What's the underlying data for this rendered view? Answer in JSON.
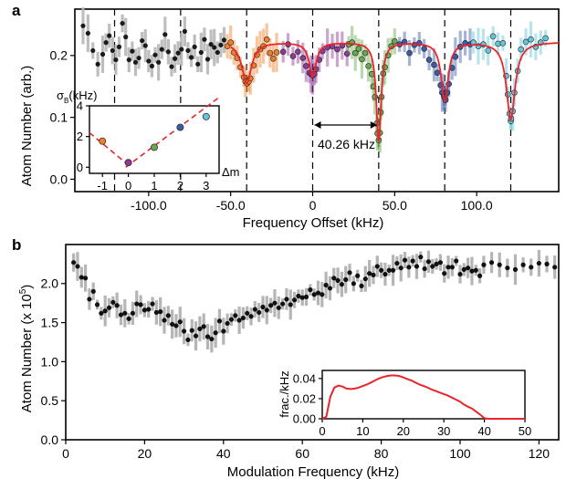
{
  "chart_data": [
    {
      "panel": "a",
      "type": "scatter",
      "xlabel": "Frequency Offset (kHz)",
      "ylabel": "Atom Number (arb.)",
      "xlim": [
        -145,
        150
      ],
      "ylim": [
        -0.02,
        0.275
      ],
      "xticks": [
        -100,
        -50,
        0,
        50,
        100
      ],
      "xtick_labels": [
        "-100.0",
        "-50.0",
        "0",
        "50.0",
        "100.0"
      ],
      "yticks": [
        0,
        0.1,
        0.2
      ],
      "ytick_labels": [
        "0.0",
        "0.1",
        "0.2"
      ],
      "grid": false,
      "annotation": "40.26 kHz",
      "dashed_lines_x": [
        -120.78,
        -80.52,
        -40.26,
        0,
        40.26,
        80.52,
        120.78
      ],
      "fit": {
        "name": "fit",
        "color": "#e8262b",
        "baseline": 0.222,
        "dips": [
          {
            "center": -40.26,
            "depth": 0.067,
            "width": 3.6
          },
          {
            "center": 0,
            "depth": 0.055,
            "width": 2.6
          },
          {
            "center": 40.26,
            "depth": 0.16,
            "width": 1.8
          },
          {
            "center": 80.52,
            "depth": 0.095,
            "width": 2.6
          },
          {
            "center": 120.78,
            "depth": 0.125,
            "width": 3.2
          }
        ],
        "x_start": -50
      },
      "series": [
        {
          "color": "#1a1a1a",
          "x": [
            -140,
            -137,
            -134,
            -131,
            -128,
            -126,
            -124,
            -122,
            -120,
            -118,
            -116,
            -114,
            -112,
            -110,
            -108,
            -106,
            -104,
            -102,
            -100,
            -98,
            -96,
            -94,
            -92,
            -90,
            -88,
            -86,
            -84,
            -82,
            -80,
            -78,
            -76,
            -74,
            -72,
            -70,
            -68,
            -66,
            -64,
            -62,
            -60,
            -58,
            -56,
            -54
          ],
          "y": [
            0.248,
            0.236,
            0.208,
            0.186,
            0.202,
            0.221,
            0.232,
            0.208,
            0.193,
            0.214,
            0.252,
            0.23,
            0.193,
            0.207,
            0.189,
            0.196,
            0.224,
            0.216,
            0.191,
            0.183,
            0.201,
            0.189,
            0.21,
            0.234,
            0.206,
            0.182,
            0.195,
            0.204,
            0.21,
            0.239,
            0.208,
            0.197,
            0.214,
            0.186,
            0.205,
            0.226,
            0.194,
            0.218,
            0.213,
            0.205,
            0.217,
            0.225
          ]
        },
        {
          "color": "#f07f2a",
          "x": [
            -52,
            -50,
            -48,
            -46,
            -44,
            -42,
            -41,
            -40,
            -39,
            -38,
            -36,
            -34,
            -32,
            -30,
            -28,
            -26,
            -24,
            -22
          ],
          "y": [
            0.215,
            0.221,
            0.205,
            0.196,
            0.181,
            0.165,
            0.158,
            0.155,
            0.158,
            0.163,
            0.184,
            0.201,
            0.21,
            0.215,
            0.226,
            0.204,
            0.195,
            0.205
          ]
        },
        {
          "color": "#8d3a95",
          "x": [
            -18,
            -15,
            -12,
            -9,
            -6,
            -4,
            -2,
            -1,
            0,
            1,
            2,
            4,
            6,
            9,
            12,
            15,
            18,
            21
          ],
          "y": [
            0.206,
            0.218,
            0.199,
            0.206,
            0.196,
            0.183,
            0.172,
            0.17,
            0.168,
            0.17,
            0.178,
            0.193,
            0.207,
            0.213,
            0.215,
            0.21,
            0.216,
            0.203
          ]
        },
        {
          "color": "#6aa84f",
          "x": [
            22,
            24,
            26,
            28,
            30,
            32,
            34,
            36,
            37,
            38,
            39,
            39.5,
            40.26,
            41,
            41.5,
            42,
            43,
            44,
            46,
            48,
            50
          ],
          "y": [
            0.218,
            0.221,
            0.204,
            0.211,
            0.194,
            0.204,
            0.183,
            0.17,
            0.15,
            0.133,
            0.09,
            0.074,
            0.063,
            0.075,
            0.108,
            0.133,
            0.171,
            0.181,
            0.2,
            0.215,
            0.223
          ]
        },
        {
          "color": "#3c5aa6",
          "x": [
            53,
            56,
            59,
            62,
            65,
            68,
            71,
            74,
            76,
            78,
            79,
            80,
            80.5,
            81,
            82,
            83,
            85,
            87,
            90,
            93,
            96
          ],
          "y": [
            0.218,
            0.222,
            0.204,
            0.217,
            0.22,
            0.211,
            0.193,
            0.185,
            0.172,
            0.152,
            0.14,
            0.135,
            0.132,
            0.128,
            0.14,
            0.154,
            0.18,
            0.198,
            0.214,
            0.22,
            0.218
          ]
        },
        {
          "color": "#66c5d9",
          "x": [
            98,
            101,
            104,
            107,
            110,
            113,
            116,
            118,
            119,
            120,
            120.78,
            121,
            122,
            123,
            125,
            127,
            130,
            133,
            136,
            139,
            142
          ],
          "y": [
            0.221,
            0.215,
            0.218,
            0.208,
            0.231,
            0.219,
            0.22,
            0.167,
            0.137,
            0.106,
            0.094,
            0.098,
            0.11,
            0.14,
            0.175,
            0.21,
            0.222,
            0.226,
            0.214,
            0.221,
            0.228
          ]
        }
      ]
    },
    {
      "panel": "inset-a",
      "type": "scatter",
      "ylabel": "σB(kHz)",
      "xlabel": "Δm",
      "xlim": [
        -1.5,
        3.5
      ],
      "ylim": [
        -0.4,
        4
      ],
      "xticks": [
        -1,
        0,
        1,
        2,
        3
      ],
      "xtick_labels": [
        "-1",
        "0",
        "1",
        "2",
        "3"
      ],
      "yticks": [
        0,
        2,
        4
      ],
      "ytick_labels": [
        "0",
        "2",
        "4"
      ],
      "points": [
        {
          "x": -1,
          "y": 1.7,
          "color": "#f07f2a"
        },
        {
          "x": 0,
          "y": 0.3,
          "color": "#8d3a95"
        },
        {
          "x": 1,
          "y": 1.3,
          "color": "#6aa84f"
        },
        {
          "x": 2,
          "y": 2.6,
          "color": "#3c5aa6"
        },
        {
          "x": 3,
          "y": 3.3,
          "color": "#66c5d9"
        }
      ],
      "fit_lines": [
        {
          "x": [
            -1.5,
            0.1
          ],
          "y": [
            2.25,
            0.0
          ]
        },
        {
          "x": [
            -0.1,
            3.5
          ],
          "y": [
            0.0,
            4.55
          ]
        }
      ]
    },
    {
      "panel": "b",
      "type": "scatter",
      "xlabel": "Modulation Frequency (kHz)",
      "ylabel": "Atom Number (x 10^5)",
      "xlim": [
        0,
        125
      ],
      "ylim": [
        0,
        2.5
      ],
      "xticks": [
        0,
        20,
        40,
        60,
        80,
        100,
        120
      ],
      "xtick_labels": [
        "0",
        "20",
        "40",
        "60",
        "80",
        "100",
        "120"
      ],
      "yticks": [
        0,
        0.5,
        1.0,
        1.5,
        2.0
      ],
      "ytick_labels": [
        "0.0",
        "0.5",
        "1.0",
        "1.5",
        "2.0"
      ],
      "grid": false,
      "x": [
        2,
        3,
        4,
        5,
        6,
        7,
        8,
        9,
        10,
        11,
        12,
        13,
        14,
        15,
        16,
        17,
        18,
        19,
        20,
        21,
        22,
        23,
        24,
        25,
        26,
        27,
        28,
        29,
        30,
        31,
        32,
        33,
        34,
        35,
        36,
        37,
        38,
        39,
        40,
        41,
        42,
        43,
        44,
        45,
        46,
        47,
        48,
        49,
        50,
        51,
        52,
        53,
        54,
        55,
        56,
        57,
        58,
        59,
        60,
        61,
        62,
        63,
        64,
        65,
        66,
        67,
        68,
        69,
        70,
        71,
        72,
        73,
        74,
        75,
        76,
        77,
        78,
        79,
        80,
        81,
        82,
        83,
        84,
        85,
        86,
        87,
        88,
        89,
        90,
        91,
        92,
        93,
        94,
        95,
        96,
        97,
        98,
        99,
        100,
        101,
        102,
        103,
        104,
        105,
        106,
        108,
        110,
        112,
        114,
        116,
        118,
        120,
        122,
        124
      ],
      "y": [
        2.27,
        2.22,
        2.08,
        2.07,
        1.8,
        1.9,
        1.73,
        1.62,
        1.65,
        1.69,
        1.76,
        1.72,
        1.6,
        1.62,
        1.55,
        1.62,
        1.74,
        1.73,
        1.66,
        1.67,
        1.74,
        1.63,
        1.64,
        1.53,
        1.59,
        1.48,
        1.46,
        1.51,
        1.39,
        1.28,
        1.4,
        1.33,
        1.42,
        1.45,
        1.32,
        1.29,
        1.37,
        1.52,
        1.39,
        1.49,
        1.54,
        1.59,
        1.53,
        1.56,
        1.62,
        1.58,
        1.67,
        1.63,
        1.7,
        1.66,
        1.72,
        1.75,
        1.69,
        1.74,
        1.8,
        1.73,
        1.79,
        1.84,
        1.82,
        1.83,
        1.92,
        1.86,
        1.88,
        1.86,
        1.98,
        1.94,
        2.07,
        2.04,
        1.99,
        2.05,
        2.14,
        2.0,
        2.1,
        1.97,
        2.06,
        2.13,
        2.11,
        2.22,
        2.17,
        2.12,
        2.17,
        2.17,
        2.26,
        2.2,
        2.3,
        2.21,
        2.29,
        2.22,
        2.34,
        2.19,
        2.28,
        2.22,
        2.25,
        2.27,
        2.13,
        2.21,
        2.21,
        2.29,
        2.12,
        2.18,
        2.2,
        2.16,
        2.17,
        2.1,
        2.24,
        2.27,
        2.24,
        2.2,
        2.18,
        2.24,
        2.21,
        2.26,
        2.25,
        2.21
      ]
    },
    {
      "panel": "inset-b",
      "type": "line",
      "ylabel": "frac./kHz",
      "xlim": [
        0,
        50
      ],
      "ylim": [
        0,
        0.048
      ],
      "xticks": [
        0,
        10,
        20,
        30,
        40,
        50
      ],
      "xtick_labels": [
        "0",
        "10",
        "20",
        "30",
        "40",
        "50"
      ],
      "yticks": [
        0,
        0.02,
        0.04
      ],
      "ytick_labels": [
        "0.00",
        "0.02",
        "0.04"
      ],
      "x": [
        0,
        1,
        2,
        3,
        4,
        5,
        6,
        7,
        8,
        9,
        10,
        11,
        12,
        13,
        14,
        15,
        16,
        17,
        18,
        19,
        20,
        21,
        22,
        23,
        24,
        25,
        26,
        27,
        28,
        29,
        30,
        31,
        32,
        33,
        34,
        35,
        36,
        37,
        38,
        39,
        40,
        41,
        42,
        43,
        44,
        45,
        46,
        47,
        48,
        49,
        50
      ],
      "y": [
        0,
        0.002,
        0.022,
        0.031,
        0.033,
        0.032,
        0.03,
        0.0295,
        0.03,
        0.031,
        0.0325,
        0.034,
        0.036,
        0.038,
        0.04,
        0.0415,
        0.0425,
        0.043,
        0.043,
        0.0425,
        0.041,
        0.0395,
        0.038,
        0.036,
        0.034,
        0.0325,
        0.031,
        0.029,
        0.0275,
        0.026,
        0.0245,
        0.023,
        0.021,
        0.019,
        0.017,
        0.014,
        0.012,
        0.01,
        0.007,
        0.004,
        0.0005,
        0,
        0,
        0,
        0,
        0,
        0,
        0,
        0,
        0,
        0
      ],
      "color": "#e8262b"
    }
  ],
  "labels": {
    "panel_a": "a",
    "panel_b": "b",
    "a_xlabel": "Frequency Offset (kHz)",
    "a_ylabel": "Atom Number (arb.)",
    "b_xlabel": "Modulation Frequency (kHz)",
    "b_ylabel_main": "Atom Number (x 10",
    "b_ylabel_sup": "5",
    "b_ylabel_end": ")",
    "inset_a_ylabel": "σ",
    "inset_a_ylabel_sub": "B",
    "inset_a_ylabel_end": "(kHz)",
    "inset_a_xlabel": "Δm",
    "inset_b_ylabel": "frac./kHz",
    "annotation": "40.26 kHz"
  }
}
